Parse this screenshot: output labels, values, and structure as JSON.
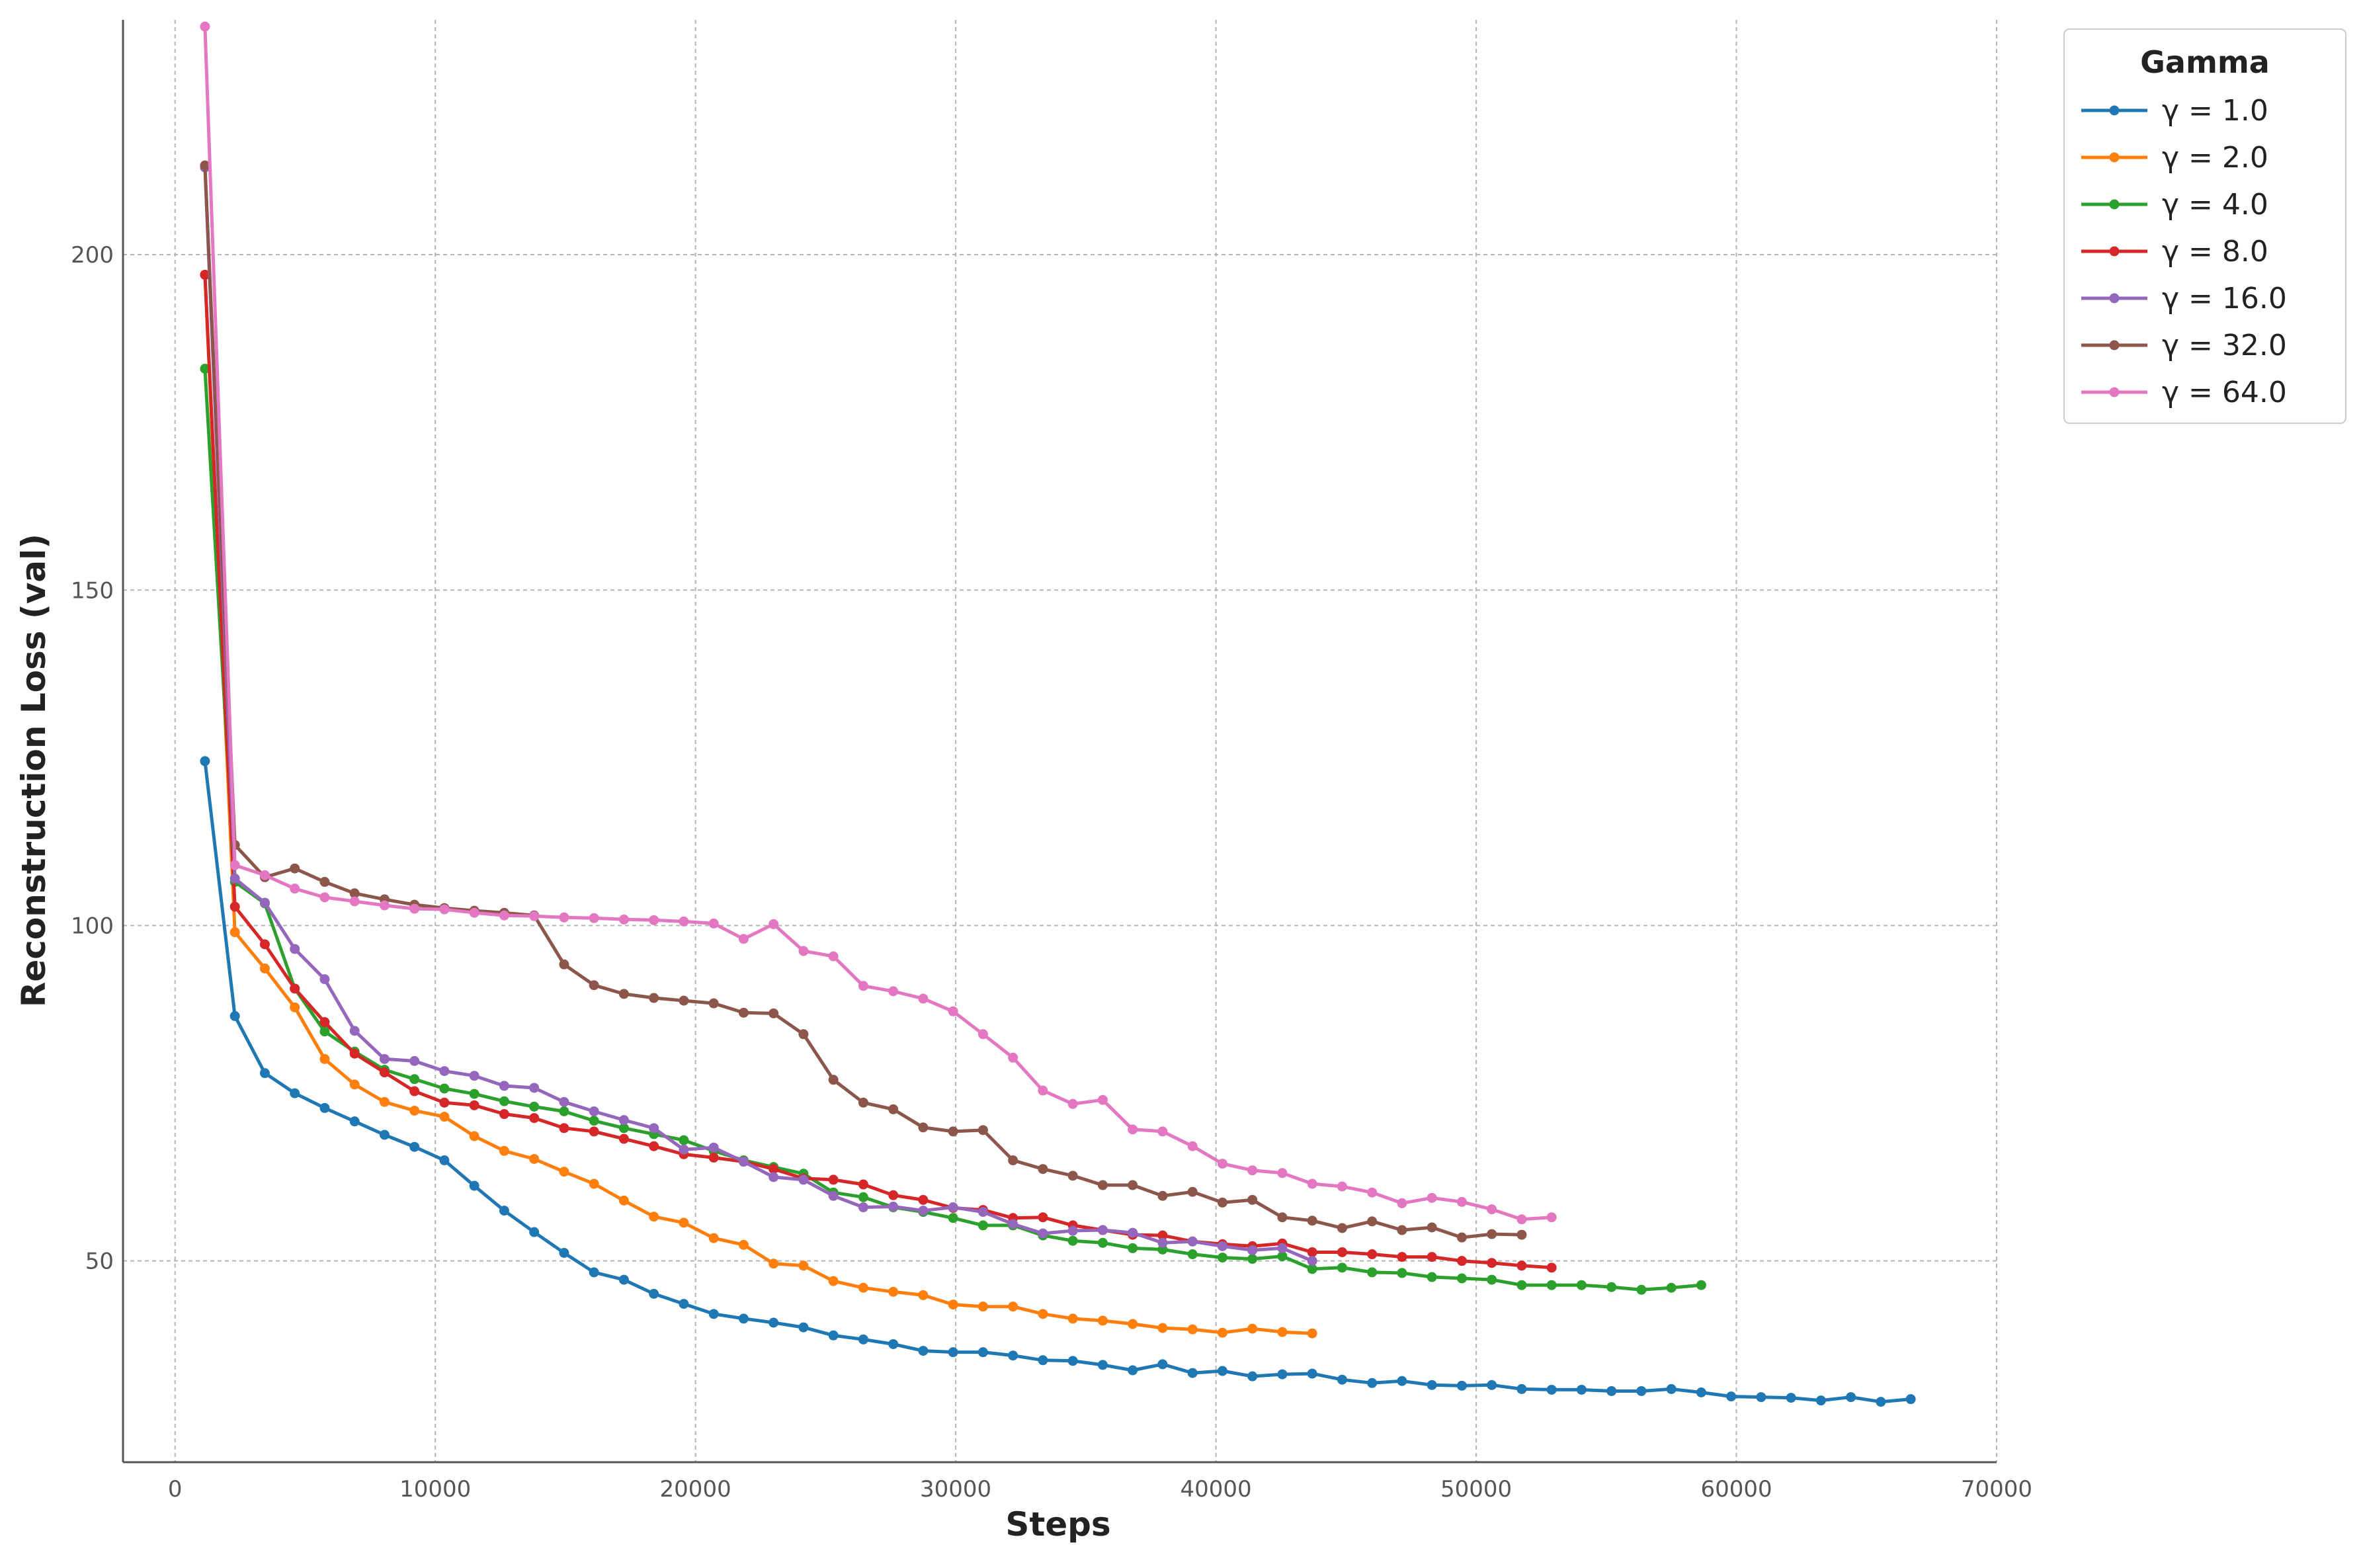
{
  "chart_data": {
    "type": "line",
    "xlabel": "Steps",
    "ylabel": "Reconstruction Loss (val)",
    "xlim": [
      -2000,
      70000
    ],
    "ylim": [
      20,
      235
    ],
    "xticks": [
      0,
      10000,
      20000,
      30000,
      40000,
      50000,
      60000,
      70000
    ],
    "xtick_labels": [
      "0",
      "10000",
      "20000",
      "30000",
      "40000",
      "50000",
      "60000",
      "70000"
    ],
    "yticks": [
      50,
      100,
      150,
      200
    ],
    "ytick_labels": [
      "50",
      "100",
      "150",
      "200"
    ],
    "grid": true,
    "legend": {
      "title": "Gamma",
      "placement": "outside upper right"
    },
    "series": [
      {
        "name": "γ = 1.0",
        "color": "#1f77b4",
        "x": [
          1150,
          2300,
          3450,
          4600,
          5750,
          6900,
          8050,
          9200,
          10350,
          11500,
          12650,
          13800,
          14950,
          16100,
          17250,
          18400,
          19550,
          20700,
          21850,
          23000,
          24150,
          25300,
          26450,
          27600,
          28750,
          29900,
          31050,
          32200,
          33350,
          34500,
          35650,
          36800,
          37950,
          39100,
          40250,
          41400,
          42550,
          43700,
          44850,
          46000,
          47150,
          48300,
          49450,
          50600,
          51750,
          52900,
          54050,
          55200,
          56350,
          57500,
          58650,
          59800,
          60950,
          62100,
          63250,
          64400,
          65550,
          66700
        ],
        "y": [
          124.5,
          86.5,
          78,
          75,
          72.8,
          70.8,
          68.8,
          67,
          65,
          61.2,
          57.5,
          54.3,
          51.2,
          48.3,
          47.2,
          45.1,
          43.6,
          42.1,
          41.4,
          40.8,
          40.1,
          38.9,
          38.3,
          37.6,
          36.6,
          36.4,
          36.4,
          35.9,
          35.2,
          35.1,
          34.5,
          33.7,
          34.6,
          33.3,
          33.6,
          32.8,
          33.1,
          33.2,
          32.3,
          31.8,
          32.1,
          31.5,
          31.4,
          31.5,
          30.9,
          30.8,
          30.8,
          30.6,
          30.6,
          30.9,
          30.4,
          29.8,
          29.7,
          29.6,
          29.2,
          29.7,
          29.0,
          29.4
        ]
      },
      {
        "name": "γ = 2.0",
        "color": "#ff7f0e",
        "x": [
          1150,
          2300,
          3450,
          4600,
          5750,
          6900,
          8050,
          9200,
          10350,
          11500,
          12650,
          13800,
          14950,
          16100,
          17250,
          18400,
          19550,
          20700,
          21850,
          23000,
          24150,
          25300,
          26450,
          27600,
          28750,
          29900,
          31050,
          32200,
          33350,
          34500,
          35650,
          36800,
          37950,
          39100,
          40250,
          41400,
          42550,
          43700
        ],
        "y": [
          197,
          99,
          93.6,
          87.8,
          80.1,
          76.3,
          73.7,
          72.4,
          71.5,
          68.6,
          66.4,
          65.2,
          63.3,
          61.5,
          59.0,
          56.6,
          55.7,
          53.4,
          52.4,
          49.6,
          49.3,
          47.0,
          46.0,
          45.4,
          44.9,
          43.5,
          43.2,
          43.2,
          42.1,
          41.4,
          41.1,
          40.6,
          40.0,
          39.8,
          39.3,
          39.9,
          39.4,
          39.2
        ]
      },
      {
        "name": "γ = 4.0",
        "color": "#2ca02c",
        "x": [
          1150,
          2300,
          3450,
          4600,
          5750,
          6900,
          8050,
          9200,
          10350,
          11500,
          12650,
          13800,
          14950,
          16100,
          17250,
          18400,
          19550,
          20700,
          21850,
          23000,
          24150,
          25300,
          26450,
          27600,
          28750,
          29900,
          31050,
          32200,
          33350,
          34500,
          35650,
          36800,
          37950,
          39100,
          40250,
          41400,
          42550,
          43700,
          44850,
          46000,
          47150,
          48300,
          49450,
          50600,
          51750,
          52900,
          54050,
          55200,
          56350,
          57500,
          58650
        ],
        "y": [
          183,
          106.5,
          103.3,
          90.6,
          84.2,
          81.2,
          78.5,
          77.1,
          75.7,
          74.9,
          73.8,
          73.0,
          72.3,
          70.9,
          69.8,
          68.9,
          68.0,
          66.4,
          65.0,
          64.0,
          63.0,
          60.2,
          59.5,
          58.0,
          57.3,
          56.4,
          55.3,
          55.3,
          53.8,
          53.0,
          52.7,
          51.9,
          51.7,
          51.0,
          50.5,
          50.3,
          50.7,
          48.8,
          49.0,
          48.3,
          48.2,
          47.6,
          47.4,
          47.2,
          46.4,
          46.4,
          46.4,
          46.1,
          45.7,
          46.0,
          46.4
        ]
      },
      {
        "name": "γ = 8.0",
        "color": "#d62728",
        "x": [
          1150,
          2300,
          3450,
          4600,
          5750,
          6900,
          8050,
          9200,
          10350,
          11500,
          12650,
          13800,
          14950,
          16100,
          17250,
          18400,
          19550,
          20700,
          21850,
          23000,
          24150,
          25300,
          26450,
          27600,
          28750,
          29900,
          31050,
          32200,
          33350,
          34500,
          35650,
          36800,
          37950,
          39100,
          40250,
          41400,
          42550,
          43700,
          44850,
          46000,
          47150,
          48300,
          49450,
          50600,
          51750,
          52900
        ],
        "y": [
          197,
          102.8,
          97.2,
          90.6,
          85.6,
          80.9,
          78.1,
          75.3,
          73.6,
          73.2,
          71.9,
          71.3,
          69.8,
          69.3,
          68.2,
          67.1,
          65.9,
          65.4,
          64.8,
          63.7,
          62.3,
          62.1,
          61.4,
          59.8,
          59.1,
          57.9,
          57.6,
          56.4,
          56.5,
          55.3,
          54.6,
          53.9,
          53.8,
          52.9,
          52.5,
          52.2,
          52.6,
          51.3,
          51.3,
          51.0,
          50.6,
          50.6,
          50.0,
          49.7,
          49.3,
          49.0
        ]
      },
      {
        "name": "γ = 16.0",
        "color": "#9467bd",
        "x": [
          1150,
          2300,
          3450,
          4600,
          5750,
          6900,
          8050,
          9200,
          10350,
          11500,
          12650,
          13800,
          14950,
          16100,
          17250,
          18400,
          19550,
          20700,
          21850,
          23000,
          24150,
          25300,
          26450,
          27600,
          28750,
          29900,
          31050,
          32200,
          33350,
          34500,
          35650,
          36800,
          37950,
          39100,
          40250,
          41400,
          42550,
          43700
        ],
        "y": [
          213,
          107,
          103.4,
          96.5,
          92.0,
          84.3,
          80.1,
          79.8,
          78.3,
          77.6,
          76.1,
          75.8,
          73.7,
          72.3,
          71.0,
          69.8,
          66.6,
          66.9,
          64.8,
          62.5,
          62.1,
          59.7,
          58.0,
          58.1,
          57.5,
          58.0,
          57.3,
          55.5,
          54.1,
          54.5,
          54.6,
          54.2,
          52.7,
          52.9,
          52.2,
          51.6,
          51.9,
          50.0
        ]
      },
      {
        "name": "γ = 32.0",
        "color": "#8c564b",
        "x": [
          1150,
          2300,
          3450,
          4600,
          5750,
          6900,
          8050,
          9200,
          10350,
          11500,
          12650,
          13800,
          14950,
          16100,
          17250,
          18400,
          19550,
          20700,
          21850,
          23000,
          24150,
          25300,
          26450,
          27600,
          28750,
          29900,
          31050,
          32200,
          33350,
          34500,
          35650,
          36800,
          37950,
          39100,
          40250,
          41400,
          42550,
          43700,
          44850,
          46000,
          47150,
          48300,
          49450,
          50600,
          51750
        ],
        "y": [
          213.3,
          112,
          107.2,
          108.5,
          106.5,
          104.8,
          103.9,
          103.1,
          102.6,
          102.2,
          101.9,
          101.5,
          94.2,
          91.1,
          89.8,
          89.2,
          88.8,
          88.4,
          87.0,
          86.9,
          83.8,
          77.0,
          73.6,
          72.6,
          69.9,
          69.3,
          69.5,
          65.0,
          63.7,
          62.7,
          61.3,
          61.3,
          59.7,
          60.3,
          58.7,
          59.1,
          56.5,
          56.0,
          54.9,
          55.9,
          54.6,
          55.0,
          53.5,
          54.0,
          53.9
        ]
      },
      {
        "name": "γ = 64.0",
        "color": "#e377c2",
        "x": [
          1150,
          2300,
          3450,
          4600,
          5750,
          6900,
          8050,
          9200,
          10350,
          11500,
          12650,
          13800,
          14950,
          16100,
          17250,
          18400,
          19550,
          20700,
          21850,
          23000,
          24150,
          25300,
          26450,
          27600,
          28750,
          29900,
          31050,
          32200,
          33350,
          34500,
          35650,
          36800,
          37950,
          39100,
          40250,
          41400,
          42550,
          43700,
          44850,
          46000,
          47150,
          48300,
          49450,
          50600,
          51750,
          52900
        ],
        "y": [
          234,
          109,
          107.5,
          105.5,
          104.2,
          103.6,
          103.0,
          102.5,
          102.4,
          101.9,
          101.5,
          101.4,
          101.2,
          101.1,
          100.9,
          100.8,
          100.6,
          100.3,
          98.0,
          100.2,
          96.2,
          95.4,
          91.0,
          90.2,
          89.1,
          87.2,
          83.8,
          80.3,
          75.4,
          73.4,
          74.0,
          69.6,
          69.3,
          67.1,
          64.5,
          63.5,
          63.1,
          61.5,
          61.1,
          60.2,
          58.6,
          59.4,
          58.8,
          57.7,
          56.2,
          56.5
        ]
      }
    ]
  }
}
